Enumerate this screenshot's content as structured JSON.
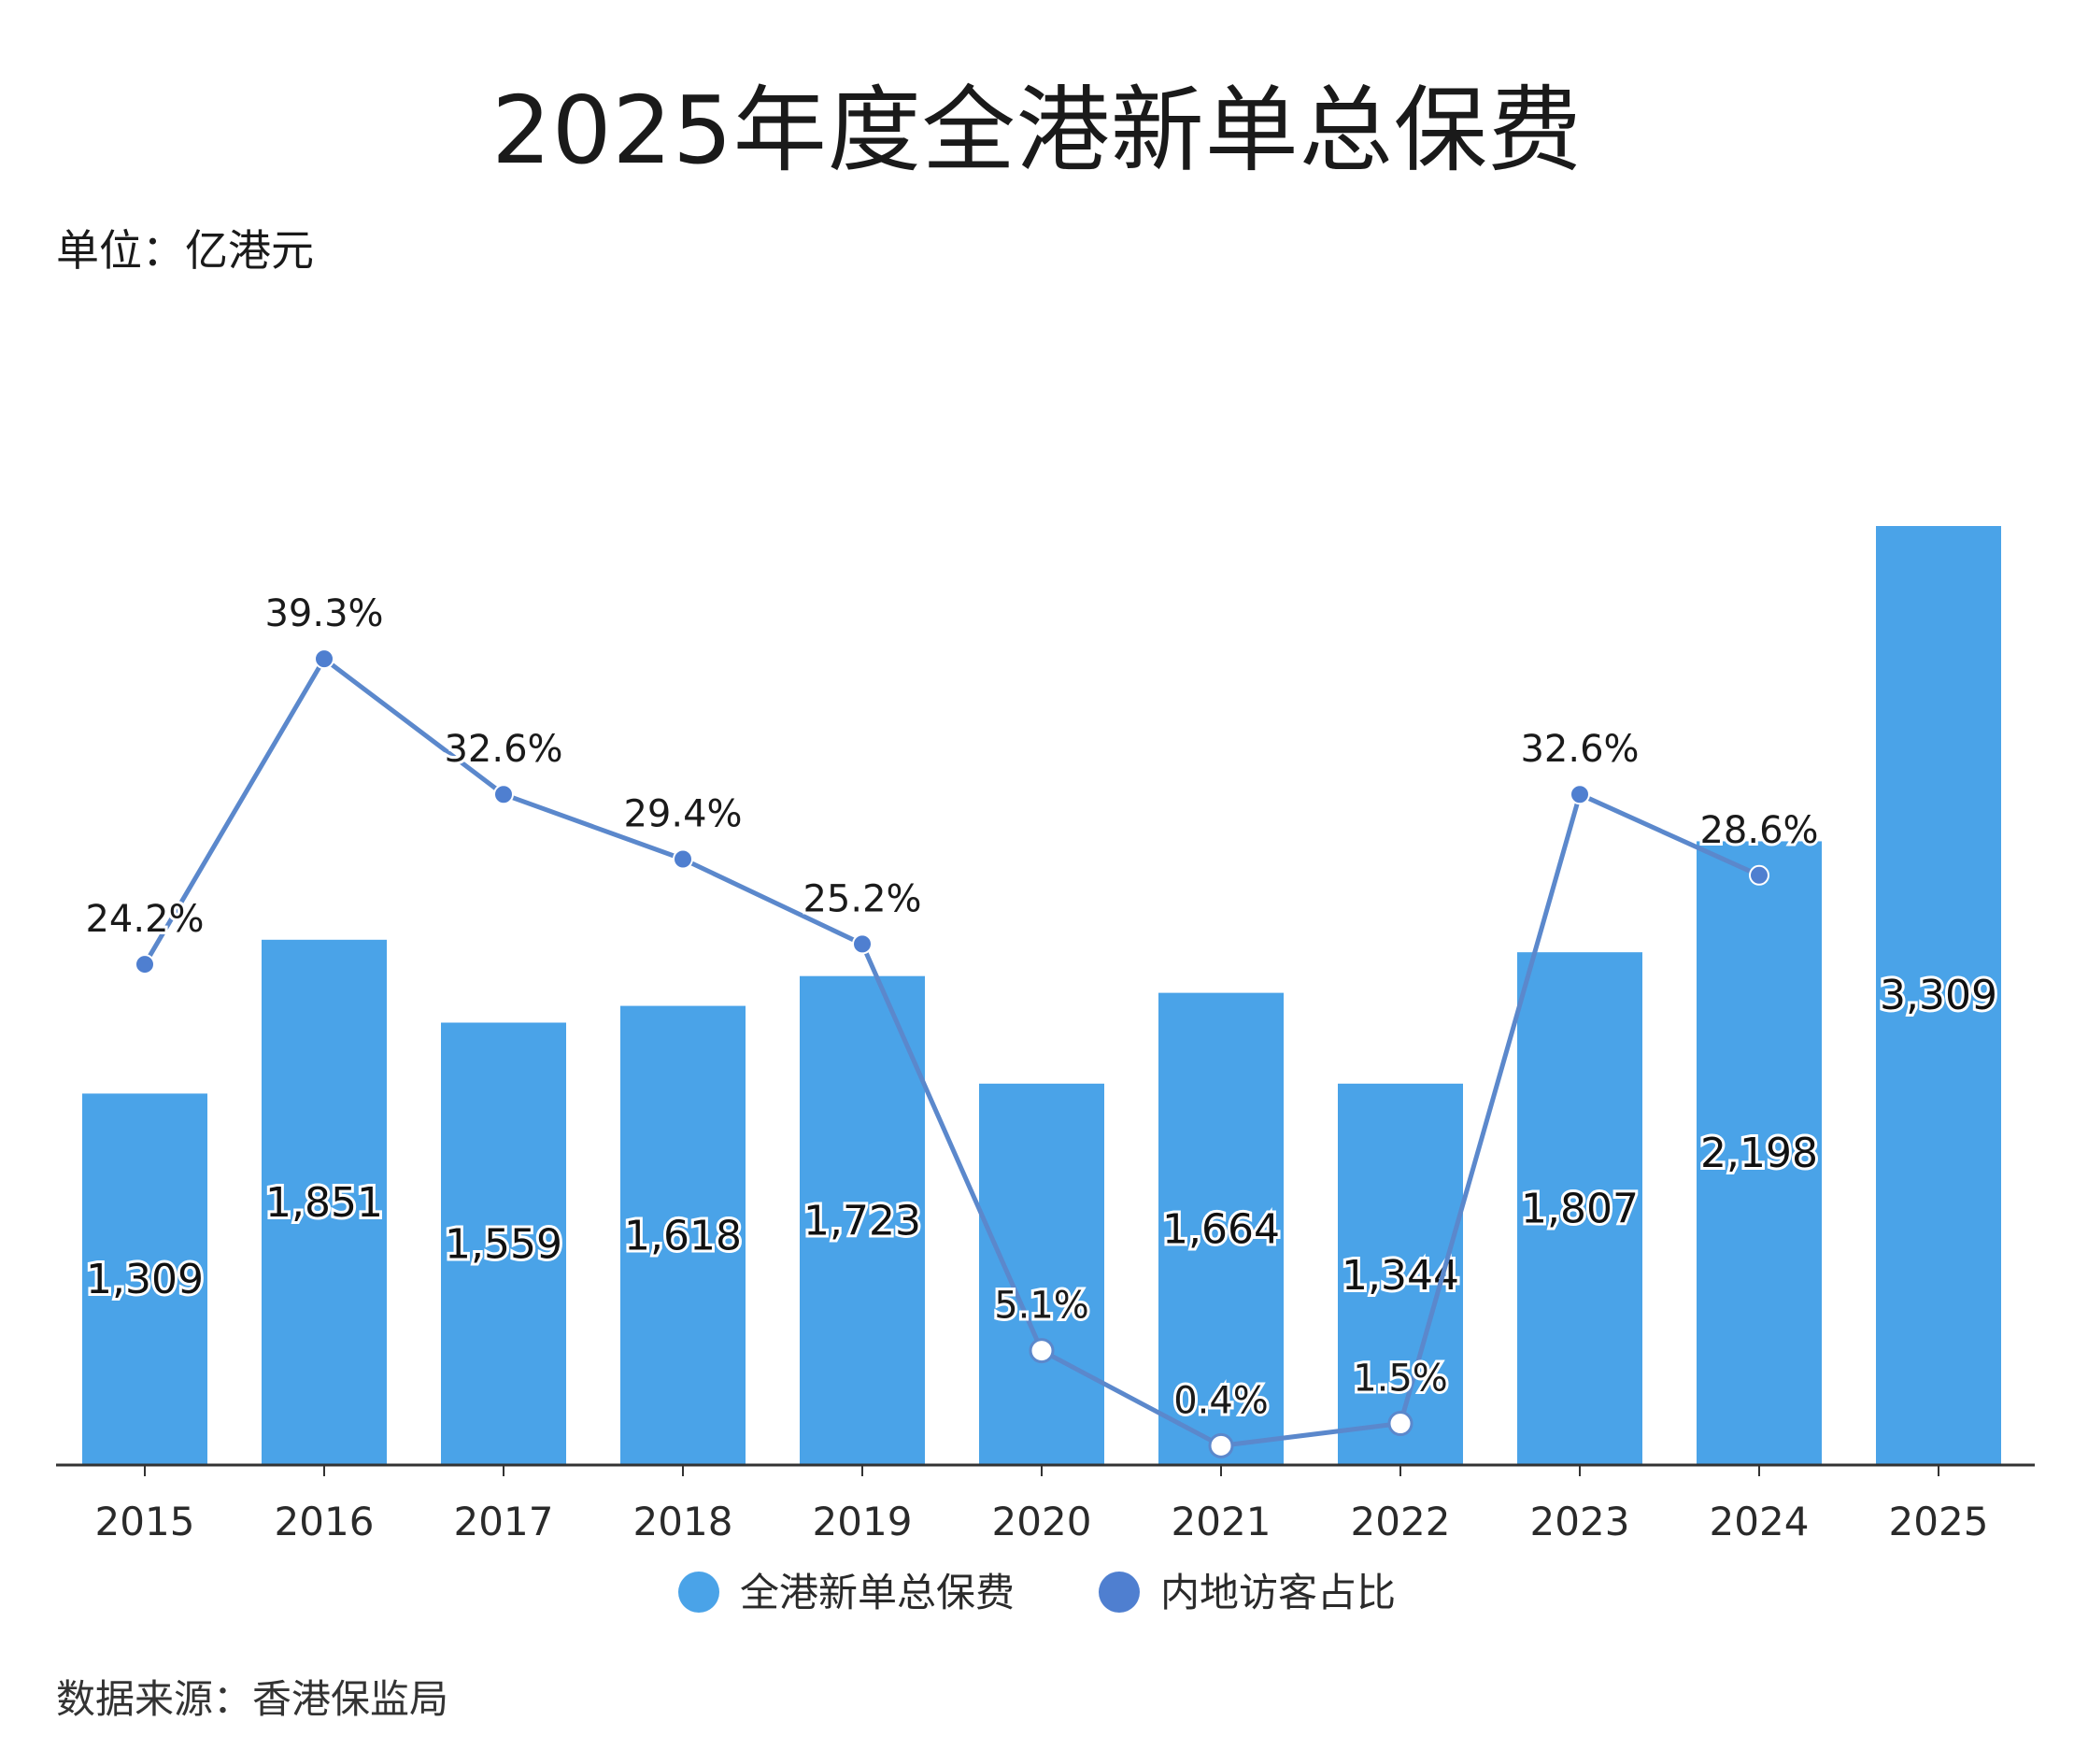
{
  "header": {
    "title": "2025年度全港新单总保费",
    "unit": "单位：亿港元"
  },
  "footer": {
    "source": "数据来源：香港保监局"
  },
  "colors": {
    "bar": "#4aa3e8",
    "line": "#5b88cc",
    "marker": "#4f7fd0",
    "axis": "#333333"
  },
  "chart_data": {
    "type": "bar",
    "categories": [
      "2015",
      "2016",
      "2017",
      "2018",
      "2019",
      "2020",
      "2021",
      "2022",
      "2023",
      "2024",
      "2025"
    ],
    "series": [
      {
        "name": "全港新单总保费",
        "type": "bar",
        "values": [
          1309,
          1851,
          1559,
          1618,
          1723,
          1344,
          1664,
          1344,
          1807,
          2198,
          3309
        ],
        "labels": [
          "1,309",
          "1,851",
          "1,559",
          "1,618",
          "1,723",
          "",
          "1,664",
          "1,344",
          "1,807",
          "2,198",
          "3,309"
        ]
      },
      {
        "name": "内地访客占比",
        "type": "line",
        "values": [
          24.2,
          39.3,
          32.6,
          29.4,
          25.2,
          5.1,
          0.4,
          1.5,
          32.6,
          28.6,
          null
        ],
        "labels": [
          "24.2%",
          "39.3%",
          "32.6%",
          "29.4%",
          "25.2%",
          "5.1%",
          "0.4%",
          "1.5%",
          "32.6%",
          "28.6%",
          ""
        ],
        "hollow_markers": [
          5,
          6,
          7
        ]
      }
    ],
    "legend": {
      "position": "bottom",
      "items": [
        "全港新单总保费",
        "内地访客占比"
      ]
    },
    "grid": false
  }
}
